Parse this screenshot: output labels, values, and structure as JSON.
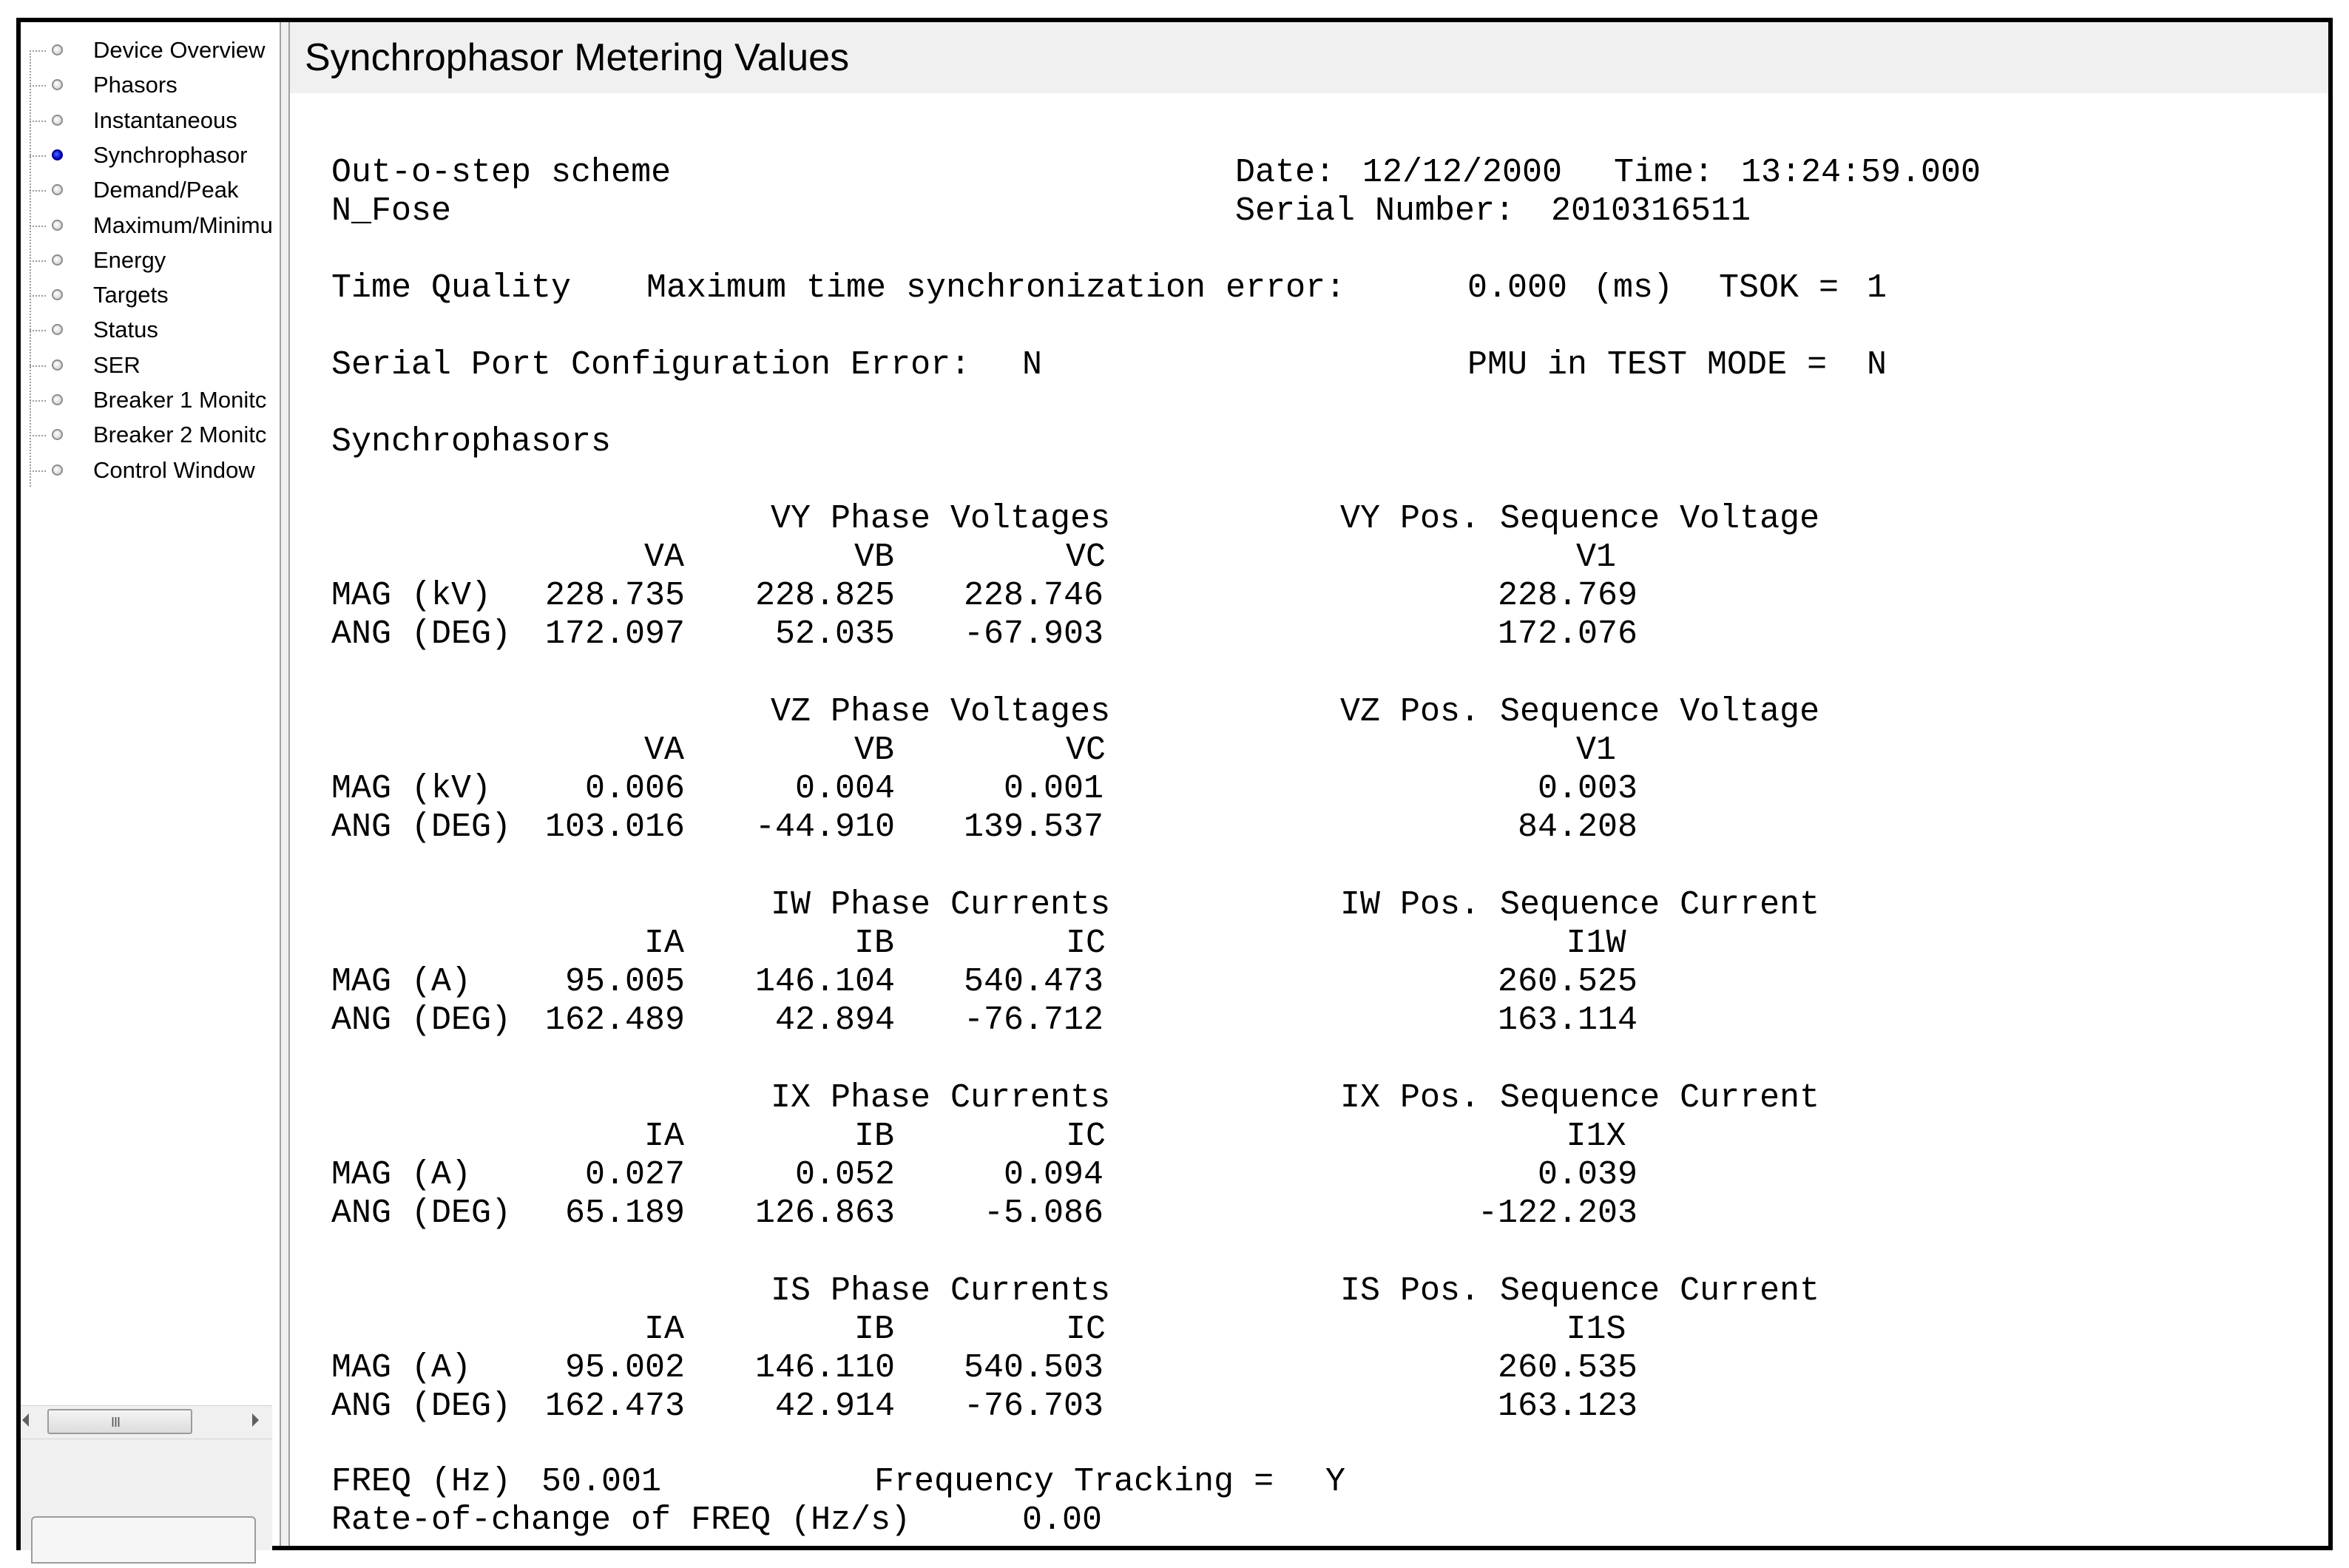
{
  "sidebar": {
    "items": [
      {
        "label": "Device Overview"
      },
      {
        "label": "Phasors"
      },
      {
        "label": "Instantaneous"
      },
      {
        "label": "Synchrophasor"
      },
      {
        "label": "Demand/Peak"
      },
      {
        "label": "Maximum/Minimu"
      },
      {
        "label": "Energy"
      },
      {
        "label": "Targets"
      },
      {
        "label": "Status"
      },
      {
        "label": "SER"
      },
      {
        "label": "Breaker 1 Monitc"
      },
      {
        "label": "Breaker 2 Monitc"
      },
      {
        "label": "Control Window"
      }
    ],
    "active_index": 3,
    "scroll_grip": "III"
  },
  "panel": {
    "title": "Synchrophasor Metering Values"
  },
  "header": {
    "relay_id": "Out-o-step scheme",
    "terminal_id": "N_Fose",
    "date_label": "Date:",
    "date": "12/12/2000",
    "time_label": "Time:",
    "time": "13:24:59.000",
    "serial_label": "Serial Number:",
    "serial": "2010316511"
  },
  "time_quality": {
    "label": "Time Quality",
    "max_err_label": "Maximum time synchronization error:",
    "max_err_value": "0.000",
    "unit": "(ms)",
    "tsok_label": "TSOK =",
    "tsok": "1"
  },
  "serial_port": {
    "label": "Serial Port Configuration Error:",
    "value": "N",
    "pmu_label": "PMU in TEST MODE =",
    "pmu_value": "N"
  },
  "synchrophasors_label": "Synchrophasors",
  "blocks": [
    {
      "phase_title": "VY Phase Voltages",
      "seq_title": "VY Pos. Sequence Voltage",
      "cols": [
        "VA",
        "VB",
        "VC"
      ],
      "seq_col": "V1",
      "mag_label": "MAG (kV)",
      "ang_label": "ANG (DEG)",
      "mag": [
        "228.735",
        "228.825",
        "228.746"
      ],
      "ang": [
        "172.097",
        "52.035",
        "-67.903"
      ],
      "seq_mag": "228.769",
      "seq_ang": "172.076"
    },
    {
      "phase_title": "VZ Phase Voltages",
      "seq_title": "VZ Pos. Sequence Voltage",
      "cols": [
        "VA",
        "VB",
        "VC"
      ],
      "seq_col": "V1",
      "mag_label": "MAG (kV)",
      "ang_label": "ANG (DEG)",
      "mag": [
        "0.006",
        "0.004",
        "0.001"
      ],
      "ang": [
        "103.016",
        "-44.910",
        "139.537"
      ],
      "seq_mag": "0.003",
      "seq_ang": "84.208"
    },
    {
      "phase_title": "IW Phase Currents",
      "seq_title": "IW Pos. Sequence Current",
      "cols": [
        "IA",
        "IB",
        "IC"
      ],
      "seq_col": "I1W",
      "mag_label": "MAG (A)",
      "ang_label": "ANG (DEG)",
      "mag": [
        "95.005",
        "146.104",
        "540.473"
      ],
      "ang": [
        "162.489",
        "42.894",
        "-76.712"
      ],
      "seq_mag": "260.525",
      "seq_ang": "163.114"
    },
    {
      "phase_title": "IX Phase Currents",
      "seq_title": "IX Pos. Sequence Current",
      "cols": [
        "IA",
        "IB",
        "IC"
      ],
      "seq_col": "I1X",
      "mag_label": "MAG (A)",
      "ang_label": "ANG (DEG)",
      "mag": [
        "0.027",
        "0.052",
        "0.094"
      ],
      "ang": [
        "65.189",
        "126.863",
        "-5.086"
      ],
      "seq_mag": "0.039",
      "seq_ang": "-122.203"
    },
    {
      "phase_title": "IS Phase Currents",
      "seq_title": "IS Pos. Sequence Current",
      "cols": [
        "IA",
        "IB",
        "IC"
      ],
      "seq_col": "I1S",
      "mag_label": "MAG (A)",
      "ang_label": "ANG (DEG)",
      "mag": [
        "95.002",
        "146.110",
        "540.503"
      ],
      "ang": [
        "162.473",
        "42.914",
        "-76.703"
      ],
      "seq_mag": "260.535",
      "seq_ang": "163.123"
    }
  ],
  "footer": {
    "freq_label": "FREQ (Hz)",
    "freq": "50.001",
    "tracking_label": "Frequency Tracking =",
    "tracking": "Y",
    "rocof_label": "Rate-of-change of FREQ (Hz/s)",
    "rocof": "0.00"
  },
  "colors": {
    "active_dot": "#0000c8",
    "panel_bg": "#f0f0f0",
    "frame": "#000000"
  }
}
